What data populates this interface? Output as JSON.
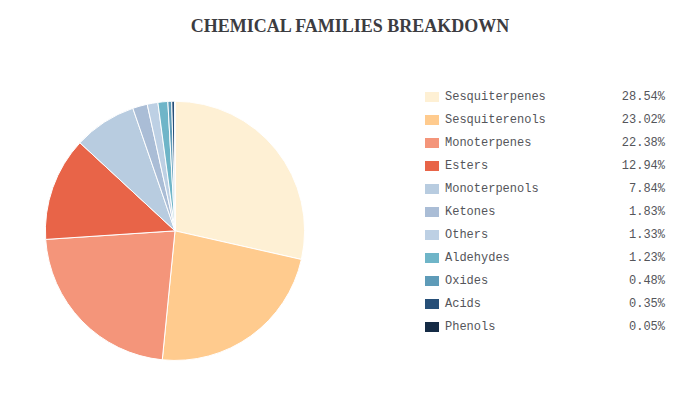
{
  "chart_data": {
    "type": "pie",
    "title": "CHEMICAL FAMILIES BREAKDOWN",
    "categories": [
      "Sesquiterpenes",
      "Sesquiterenols",
      "Monoterpenes",
      "Esters",
      "Monoterpenols",
      "Ketones",
      "Others",
      "Aldehydes",
      "Oxides",
      "Acids",
      "Phenols"
    ],
    "values": [
      28.54,
      23.02,
      22.38,
      12.94,
      7.84,
      1.83,
      1.33,
      1.23,
      0.48,
      0.35,
      0.05
    ],
    "value_labels": [
      "28.54%",
      "23.02%",
      "22.38%",
      "12.94%",
      "7.84%",
      "1.83%",
      "1.33%",
      "1.23%",
      "0.48%",
      "0.35%",
      "0.05%"
    ],
    "colors": [
      "#FEF0D4",
      "#FFCB8E",
      "#F4957A",
      "#E86448",
      "#B8CCE0",
      "#AABDD6",
      "#BDD0E4",
      "#6FB5C8",
      "#5E9BB8",
      "#264F78",
      "#152B45"
    ],
    "legend": "right"
  }
}
